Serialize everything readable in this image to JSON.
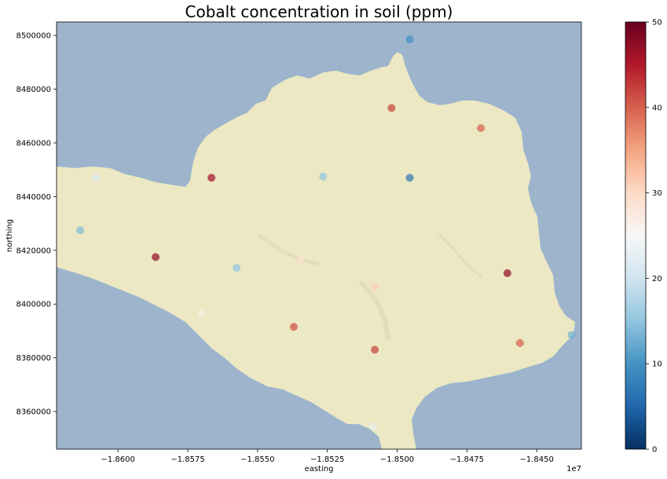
{
  "chart_data": {
    "type": "scatter",
    "title": "Cobalt concentration in soil (ppm)",
    "xlabel": "easting",
    "ylabel": "northing",
    "x_offset_label": "1e7",
    "xlim": [
      -18622000,
      -18434000
    ],
    "ylim": [
      8346000,
      8505000
    ],
    "x_ticks": [
      -18600000,
      -18575000,
      -18550000,
      -18525000,
      -18500000,
      -18475000,
      -18450000
    ],
    "x_tick_labels": [
      "−1.8600",
      "−1.8575",
      "−1.8550",
      "−1.8525",
      "−1.8500",
      "−1.8475",
      "−1.8450"
    ],
    "y_ticks": [
      8360000,
      8380000,
      8400000,
      8420000,
      8440000,
      8460000,
      8480000,
      8500000
    ],
    "y_tick_labels": [
      "8360000",
      "8380000",
      "8400000",
      "8420000",
      "8440000",
      "8460000",
      "8480000",
      "8500000"
    ],
    "colorbar": {
      "colormap": "RdBu_r",
      "vmin": 0,
      "vmax": 50,
      "ticks": [
        0,
        10,
        20,
        30,
        40,
        50
      ],
      "tick_labels": [
        "0",
        "10",
        "20",
        "30",
        "40",
        "50"
      ]
    },
    "grid": false,
    "points": [
      {
        "x": -18495500,
        "y": 8498500,
        "value": 10
      },
      {
        "x": -18502000,
        "y": 8473000,
        "value": 42
      },
      {
        "x": -18470000,
        "y": 8465500,
        "value": 40
      },
      {
        "x": -18608000,
        "y": 8447000,
        "value": 21
      },
      {
        "x": -18566500,
        "y": 8447000,
        "value": 46
      },
      {
        "x": -18526500,
        "y": 8447500,
        "value": 15
      },
      {
        "x": -18495500,
        "y": 8447000,
        "value": 7
      },
      {
        "x": -18613500,
        "y": 8427500,
        "value": 14
      },
      {
        "x": -18586500,
        "y": 8417500,
        "value": 47
      },
      {
        "x": -18557500,
        "y": 8413500,
        "value": 15
      },
      {
        "x": -18534500,
        "y": 8416500,
        "value": 29
      },
      {
        "x": -18460500,
        "y": 8411500,
        "value": 47
      },
      {
        "x": -18508000,
        "y": 8406500,
        "value": 31
      },
      {
        "x": -18570000,
        "y": 8396500,
        "value": 27
      },
      {
        "x": -18537000,
        "y": 8391500,
        "value": 41
      },
      {
        "x": -18508000,
        "y": 8383000,
        "value": 42
      },
      {
        "x": -18456000,
        "y": 8385500,
        "value": 40
      },
      {
        "x": -18437500,
        "y": 8388500,
        "value": 13
      },
      {
        "x": -18508500,
        "y": 8354500,
        "value": 23
      }
    ]
  },
  "map": {
    "sea_color": "#9db4cc",
    "land_color": "#ebe8c3",
    "ridge_color": "#d9d5ad"
  },
  "colors": {
    "cmap_stops": [
      "#053061",
      "#2166ac",
      "#4393c3",
      "#92c5de",
      "#d1e5f0",
      "#f7f7f7",
      "#fddbc7",
      "#f4a582",
      "#d6604d",
      "#b2182b",
      "#67001f"
    ]
  }
}
